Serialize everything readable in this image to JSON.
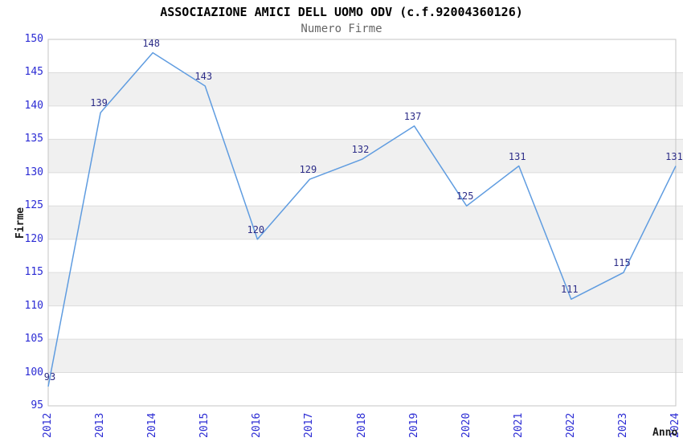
{
  "chart_data": {
    "type": "line",
    "title": "ASSOCIAZIONE AMICI DELL UOMO ODV (c.f.92004360126)",
    "subtitle": "Numero Firme",
    "xlabel": "Anno",
    "ylabel": "Firme",
    "categories": [
      "2012",
      "2013",
      "2014",
      "2015",
      "2016",
      "2017",
      "2018",
      "2019",
      "2020",
      "2021",
      "2022",
      "2023",
      "2024"
    ],
    "series": [
      {
        "name": "Numero Firme",
        "values": [
          93,
          139,
          148,
          143,
          120,
          129,
          132,
          137,
          125,
          131,
          111,
          115,
          131
        ]
      }
    ],
    "point_labels": [
      "93",
      "139",
      "148",
      "143",
      "120",
      "129",
      "132",
      "137",
      "125",
      "131",
      "111",
      "115",
      "131"
    ],
    "ylim": [
      95,
      150
    ],
    "yticks": [
      95,
      100,
      105,
      110,
      115,
      120,
      125,
      130,
      135,
      140,
      145,
      150
    ],
    "ytick_step": 5,
    "grid": true,
    "banding": "alternating horizontal gray bands every 5 units",
    "legend": "none",
    "markers": "none",
    "colors": {
      "line": "#5f9ce0",
      "tick_label": "#2b2bd4",
      "point_label": "#2d2d88",
      "band": "#f0f0f0",
      "gridline": "#dcdcdc",
      "frame": "#c6c6c6",
      "title": "#000000",
      "subtitle": "#666666",
      "axis_title": "#1a1a1a",
      "background": "#ffffff"
    }
  }
}
